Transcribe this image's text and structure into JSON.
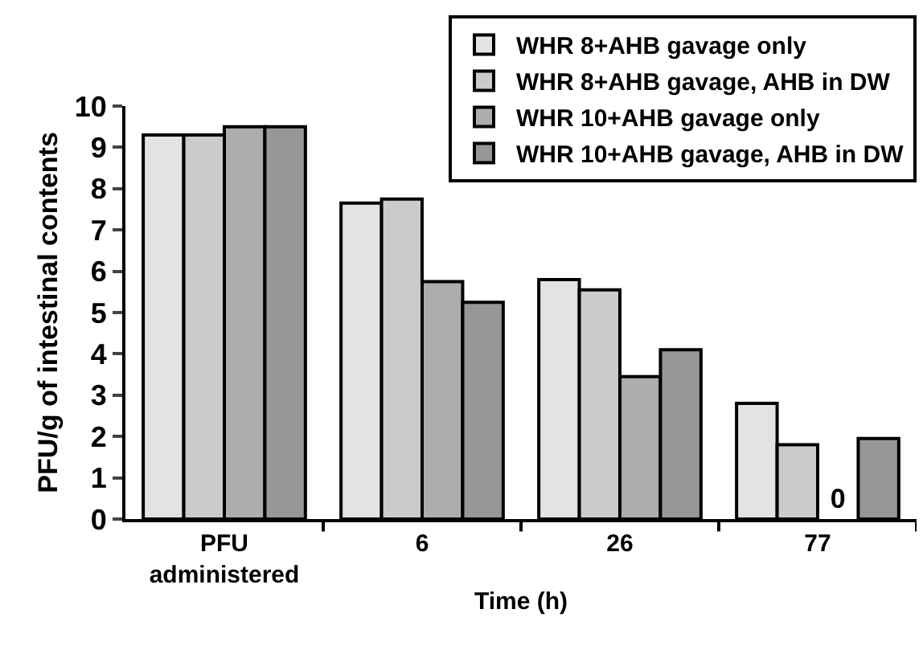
{
  "chart_data": {
    "type": "bar",
    "xlabel": "Time (h)",
    "ylabel": "PFU/g of intestinal contents",
    "categories": [
      "PFU administered",
      "6",
      "26",
      "77"
    ],
    "series": [
      {
        "name": "WHR 8+AHB gavage only",
        "color": "#e3e3e3",
        "values": [
          9.3,
          7.65,
          5.8,
          2.8
        ]
      },
      {
        "name": "WHR 8+AHB gavage, AHB in DW",
        "color": "#cbcbcb",
        "values": [
          9.3,
          7.75,
          5.55,
          1.8
        ]
      },
      {
        "name": "WHR 10+AHB gavage only",
        "color": "#adadad",
        "values": [
          9.5,
          5.75,
          3.45,
          0
        ],
        "value_labels": [
          null,
          null,
          null,
          "0"
        ]
      },
      {
        "name": "WHR 10+AHB gavage, AHB in DW",
        "color": "#979797",
        "values": [
          9.5,
          5.25,
          4.1,
          1.95
        ]
      }
    ],
    "ylim": [
      0,
      10
    ],
    "yticks": [
      0,
      1,
      2,
      3,
      4,
      5,
      6,
      7,
      8,
      9,
      10
    ],
    "grid": false,
    "legend": "top right"
  }
}
